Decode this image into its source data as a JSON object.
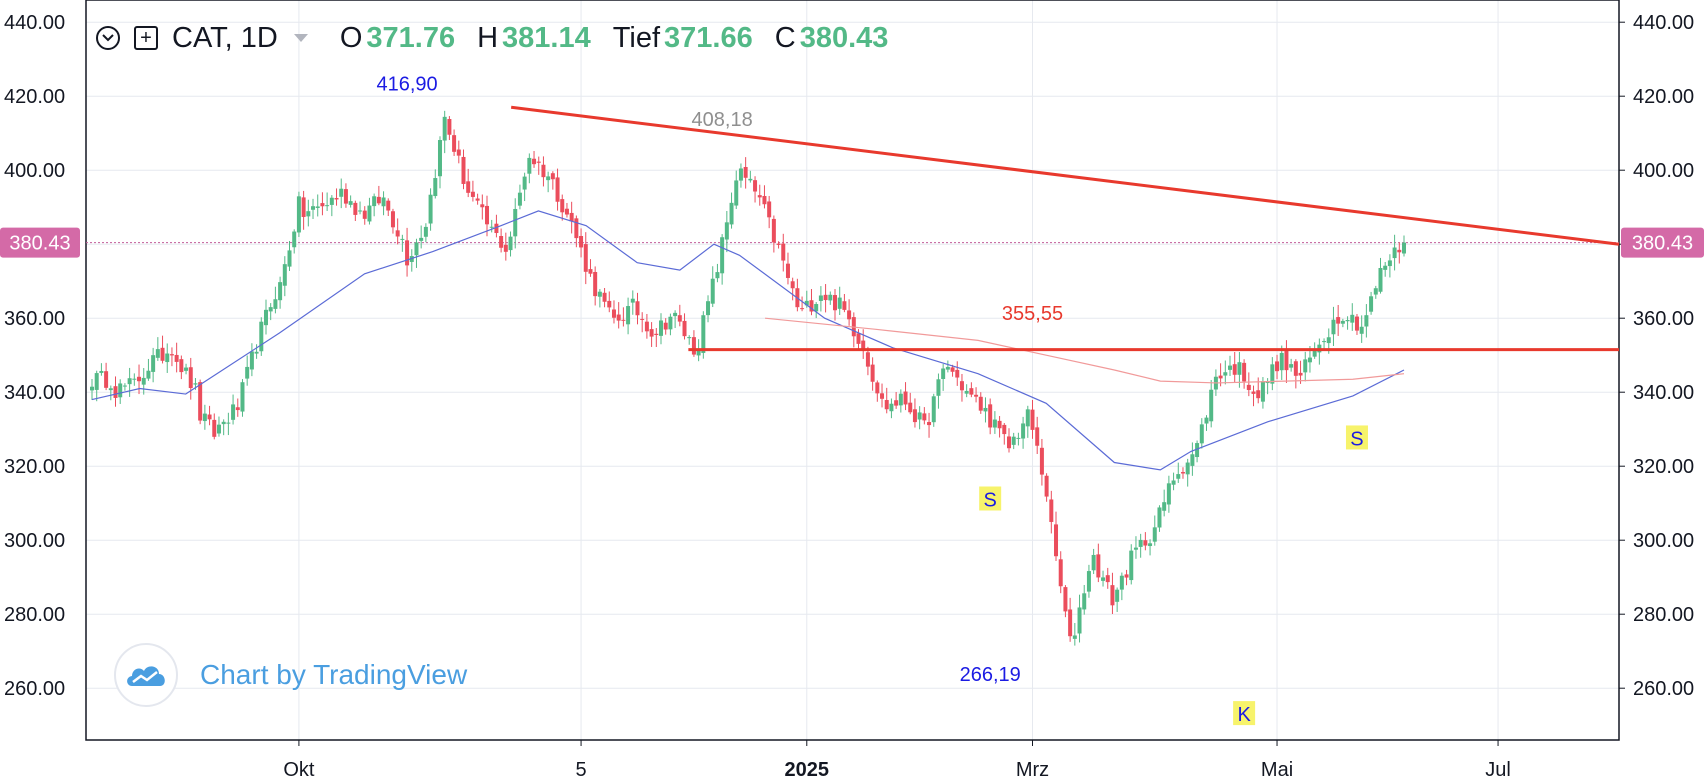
{
  "header": {
    "symbol": "CAT, 1D",
    "ohlc": [
      {
        "key": "O",
        "value": "371.76"
      },
      {
        "key": "H",
        "value": "381.14"
      },
      {
        "key": "Tief",
        "value": "371.66"
      },
      {
        "key": "C",
        "value": "380.43"
      }
    ]
  },
  "watermark": {
    "text": "Chart by TradingView"
  },
  "chart_data": {
    "type": "candlestick",
    "symbol": "CAT",
    "interval": "1D",
    "ylim": [
      246,
      446
    ],
    "yticks": [
      "260.00",
      "280.00",
      "300.00",
      "320.00",
      "340.00",
      "360.00",
      "380.00",
      "400.00",
      "420.00",
      "440.00"
    ],
    "x_ticks": [
      {
        "label": "Okt",
        "bold": false
      },
      {
        "label": "5",
        "bold": false
      },
      {
        "label": "2025",
        "bold": true
      },
      {
        "label": "Mrz",
        "bold": false
      },
      {
        "label": "Mai",
        "bold": false
      },
      {
        "label": "Jul",
        "bold": false
      }
    ],
    "last_price": "380.43",
    "last_price_value": 380.43,
    "up_color": "#53b987",
    "down_color": "#eb4d5c",
    "ohlc_keypoints": [
      [
        343.5,
        343.5
      ],
      [
        340.5,
        342.0
      ],
      [
        342.0,
        349.0
      ],
      [
        348.5,
        353.0
      ],
      [
        350.0,
        340.0
      ],
      [
        335.0,
        328.0
      ],
      [
        330.0,
        336.0
      ],
      [
        336.0,
        355.0
      ],
      [
        355.0,
        370.0
      ],
      [
        368.0,
        392.0
      ],
      [
        388.0,
        390.0
      ],
      [
        390.0,
        394.0
      ],
      [
        394.0,
        388.0
      ],
      [
        388.0,
        393.0
      ],
      [
        392.0,
        380.0
      ],
      [
        375.0,
        385.0
      ],
      [
        385.0,
        416.0
      ],
      [
        413.0,
        395.0
      ],
      [
        395.0,
        385.0
      ],
      [
        385.0,
        378.0
      ],
      [
        380.0,
        405.0
      ],
      [
        404.0,
        398.0
      ],
      [
        398.0,
        386.0
      ],
      [
        386.0,
        370.0
      ],
      [
        370.0,
        359.0
      ],
      [
        359.0,
        363.0
      ],
      [
        363.0,
        356.0
      ],
      [
        356.0,
        362.0
      ],
      [
        360.0,
        351.0
      ],
      [
        351.0,
        373.0
      ],
      [
        373.0,
        400.0
      ],
      [
        400.0,
        393.0
      ],
      [
        393.0,
        378.0
      ],
      [
        378.0,
        361.0
      ],
      [
        361.0,
        367.0
      ],
      [
        367.0,
        363.0
      ],
      [
        363.0,
        353.0
      ],
      [
        353.0,
        336.0
      ],
      [
        336.0,
        338.0
      ],
      [
        338.0,
        330.0
      ],
      [
        330.0,
        348.0
      ],
      [
        348.0,
        340.0
      ],
      [
        340.0,
        334.0
      ],
      [
        334.0,
        325.0
      ],
      [
        325.0,
        334.0
      ],
      [
        334.0,
        309.0
      ],
      [
        305.0,
        271.0
      ],
      [
        271.0,
        296.0
      ],
      [
        296.0,
        284.0
      ],
      [
        284.0,
        296.0
      ],
      [
        296.0,
        303.0
      ],
      [
        303.0,
        318.0
      ],
      [
        318.0,
        324.0
      ],
      [
        324.0,
        345.0
      ],
      [
        345.0,
        347.0
      ],
      [
        347.0,
        339.0
      ],
      [
        339.0,
        349.0
      ],
      [
        349.0,
        344.0
      ],
      [
        344.0,
        354.0
      ],
      [
        354.0,
        362.0
      ],
      [
        362.0,
        358.0
      ],
      [
        358.0,
        374.0
      ],
      [
        374.0,
        380.43
      ]
    ],
    "moving_averages": [
      {
        "name": "MA50",
        "color": "#5b6bd6",
        "values": [
          [
            0,
            338.0
          ],
          [
            28,
            341.0
          ],
          [
            55,
            339.5
          ],
          [
            110,
            356.0
          ],
          [
            160,
            372.0
          ],
          [
            200,
            378.0
          ],
          [
            240,
            385.0
          ],
          [
            262,
            389.0
          ],
          [
            290,
            385.0
          ],
          [
            320,
            375.0
          ],
          [
            345,
            373.0
          ],
          [
            365,
            380.0
          ],
          [
            380,
            377.0
          ],
          [
            430,
            360.0
          ],
          [
            470,
            352.0
          ],
          [
            520,
            345.0
          ],
          [
            560,
            337.0
          ],
          [
            600,
            321.0
          ],
          [
            627,
            319.0
          ],
          [
            645,
            324.0
          ],
          [
            690,
            332.0
          ],
          [
            740,
            339.0
          ],
          [
            770,
            346.0
          ]
        ]
      },
      {
        "name": "MA200",
        "color": "#f19a9a",
        "values": [
          [
            395,
            360.0
          ],
          [
            460,
            357.0
          ],
          [
            520,
            354.0
          ],
          [
            560,
            350.0
          ],
          [
            600,
            346.0
          ],
          [
            627,
            343.0
          ],
          [
            660,
            342.5
          ],
          [
            700,
            343.0
          ],
          [
            740,
            343.5
          ],
          [
            770,
            345.0
          ]
        ]
      }
    ],
    "trendlines": [
      {
        "name": "resistance",
        "color": "#e8392d",
        "points": [
          [
            246,
            417.0
          ],
          [
            1019,
            380.0
          ]
        ]
      },
      {
        "name": "support",
        "color": "#e8392d",
        "points": [
          [
            350,
            351.5
          ],
          [
            1019,
            351.5
          ]
        ]
      }
    ],
    "annotations": [
      {
        "label": "416,90",
        "color": "#1b1be3",
        "value": 416.9,
        "box": false
      },
      {
        "label": "408,18",
        "color": "#8f8f8f",
        "value": 408.18,
        "box": false
      },
      {
        "label": "355,55",
        "color": "#e8392d",
        "value": 355.55,
        "box": false
      },
      {
        "label": "266,19",
        "color": "#1b1be3",
        "value": 266.19,
        "box": false
      },
      {
        "label": "S",
        "color": "#1b1be3",
        "box": true
      },
      {
        "label": "K",
        "color": "#1b1be3",
        "box": true
      },
      {
        "label": "S",
        "color": "#1b1be3",
        "box": true
      }
    ]
  }
}
